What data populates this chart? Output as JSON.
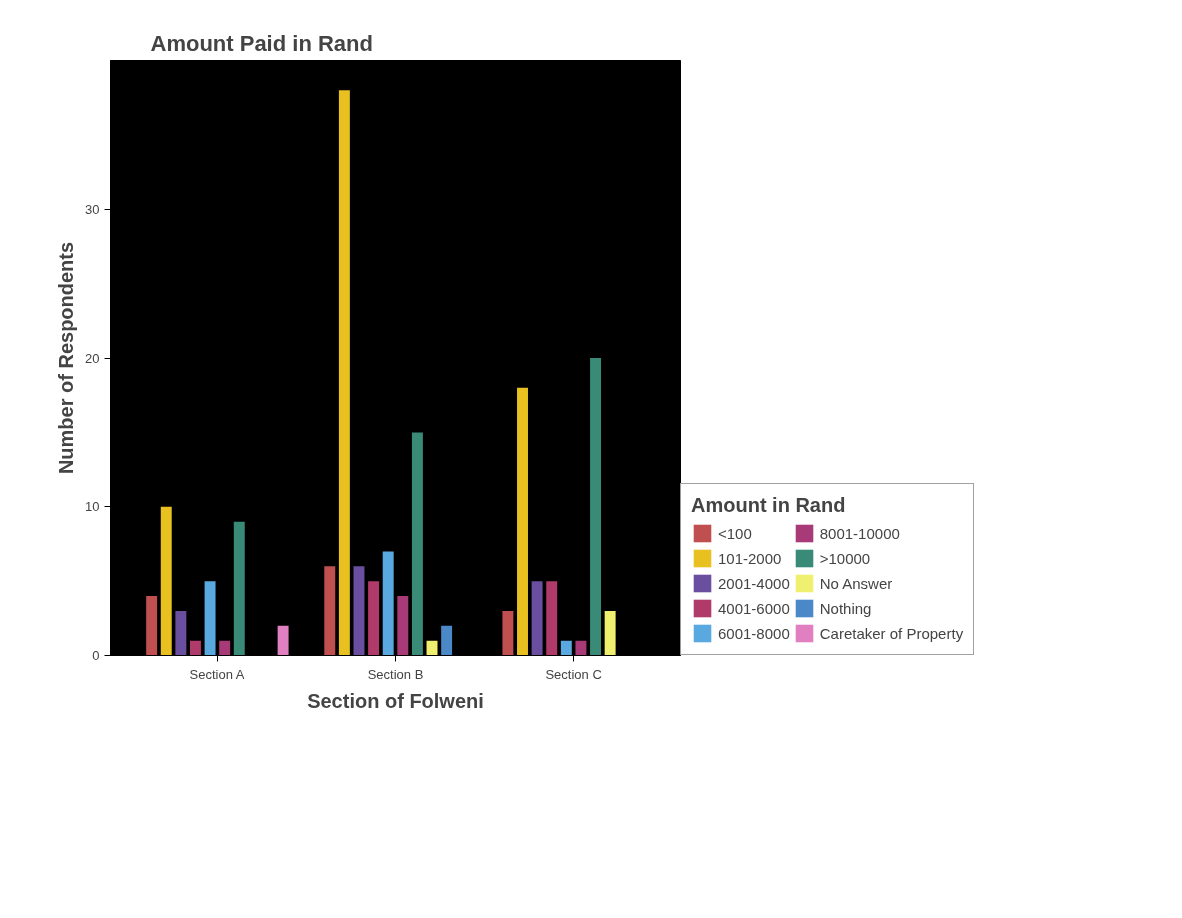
{
  "chart_data": {
    "type": "bar",
    "title": "Amount Paid in Rand",
    "xlabel": "Section of Folweni",
    "ylabel": "Number of Respondents",
    "legend_title": "Amount in Rand",
    "categories": [
      "Section A",
      "Section B",
      "Section C"
    ],
    "series": [
      {
        "name": "<100",
        "color": "#c05050",
        "values": [
          4,
          6,
          3
        ]
      },
      {
        "name": "101-2000",
        "color": "#e8c020",
        "values": [
          10,
          38,
          18
        ]
      },
      {
        "name": "2001-4000",
        "color": "#6a4fa0",
        "values": [
          3,
          6,
          5
        ]
      },
      {
        "name": "4001-6000",
        "color": "#b03a6a",
        "values": [
          1,
          5,
          5
        ]
      },
      {
        "name": "6001-8000",
        "color": "#5aa8e0",
        "values": [
          5,
          7,
          1
        ]
      },
      {
        "name": "8001-10000",
        "color": "#a83a78",
        "values": [
          1,
          4,
          1
        ]
      },
      {
        "name": ">10000",
        "color": "#3a8a78",
        "values": [
          9,
          15,
          20
        ]
      },
      {
        "name": "No Answer",
        "color": "#f0f070",
        "values": [
          0,
          1,
          3
        ]
      },
      {
        "name": "Nothing",
        "color": "#4a88c8",
        "values": [
          0,
          2,
          0
        ]
      },
      {
        "name": "Caretaker of Property",
        "color": "#e080c0",
        "values": [
          2,
          0,
          0
        ]
      }
    ],
    "ylim": [
      0,
      40
    ],
    "yticks": [
      0,
      10,
      20,
      30
    ],
    "legend": "right"
  }
}
